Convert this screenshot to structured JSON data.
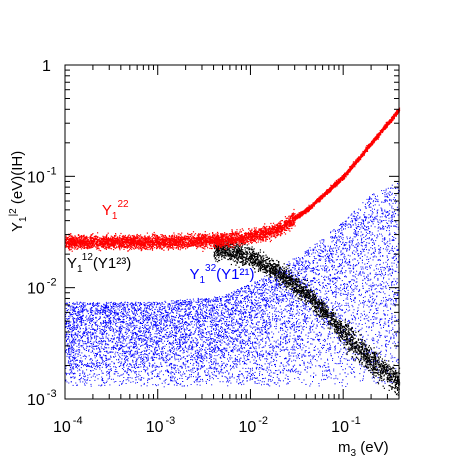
{
  "chart_data": {
    "type": "scatter",
    "x_scale": "log",
    "y_scale": "log",
    "xlim": [
      0.0001,
      0.4
    ],
    "ylim": [
      0.001,
      1
    ],
    "xlabel": {
      "main": "m",
      "sub": "3",
      "tail": " (eV)"
    },
    "ylabel": {
      "main": "Y",
      "sub": "1",
      "sup": "|2",
      "tail": " (eV)(IH)"
    },
    "x_ticks": [
      {
        "value": 0.0001,
        "base": "10",
        "exp": "-4"
      },
      {
        "value": 0.001,
        "base": "10",
        "exp": "-3"
      },
      {
        "value": 0.01,
        "base": "10",
        "exp": "-2"
      },
      {
        "value": 0.1,
        "base": "10",
        "exp": "-1"
      }
    ],
    "y_ticks": [
      {
        "value": 0.001,
        "base": "10",
        "exp": "-3"
      },
      {
        "value": 0.01,
        "base": "10",
        "exp": "-2"
      },
      {
        "value": 0.1,
        "base": "10",
        "exp": "-1"
      },
      {
        "value": 1,
        "base": "1",
        "exp": ""
      }
    ],
    "series": [
      {
        "name": "Y1^22",
        "color": "#ff0000",
        "shape": "band",
        "points": [
          [
            0.0001,
            0.026
          ],
          [
            0.001,
            0.026
          ],
          [
            0.005,
            0.027
          ],
          [
            0.01,
            0.029
          ],
          [
            0.02,
            0.034
          ],
          [
            0.04,
            0.05
          ],
          [
            0.1,
            0.1
          ],
          [
            0.2,
            0.2
          ],
          [
            0.4,
            0.4
          ]
        ],
        "spread_dex": 0.06
      },
      {
        "name": "Y1^12(Y1^23)",
        "color": "#000000",
        "shape": "band",
        "points": [
          [
            0.0001,
            0.024
          ],
          [
            0.001,
            0.024
          ],
          [
            0.005,
            0.022
          ],
          [
            0.01,
            0.019
          ],
          [
            0.02,
            0.014
          ],
          [
            0.04,
            0.009
          ],
          [
            0.1,
            0.004
          ],
          [
            0.2,
            0.0022
          ],
          [
            0.4,
            0.0014
          ]
        ],
        "spread_dex": 0.09
      },
      {
        "name": "Y1^32(Y1^21)",
        "color": "#0000ff",
        "shape": "cloud",
        "upper": [
          [
            0.0001,
            0.0075
          ],
          [
            0.001,
            0.0075
          ],
          [
            0.005,
            0.0085
          ],
          [
            0.01,
            0.011
          ],
          [
            0.02,
            0.015
          ],
          [
            0.05,
            0.025
          ],
          [
            0.1,
            0.04
          ],
          [
            0.2,
            0.07
          ],
          [
            0.4,
            0.09
          ]
        ],
        "lower": [
          [
            0.0001,
            0.0013
          ],
          [
            0.001,
            0.0013
          ],
          [
            0.005,
            0.0013
          ],
          [
            0.01,
            0.0013
          ],
          [
            0.02,
            0.0013
          ],
          [
            0.05,
            0.0013
          ],
          [
            0.1,
            0.0013
          ],
          [
            0.2,
            0.0013
          ],
          [
            0.4,
            0.0013
          ]
        ]
      }
    ],
    "annotations": [
      {
        "id": "red",
        "main": "Y",
        "sub": "1",
        "sup": "22",
        "tail": "",
        "color": "#ff0000",
        "x": 0.00025,
        "y": 0.045
      },
      {
        "id": "black",
        "main": "Y",
        "sub": "1",
        "sup": "12",
        "tail": "(Y1²³)",
        "color": "#000000",
        "x": 0.000105,
        "y": 0.015
      },
      {
        "id": "blue",
        "main": "Y",
        "sub": "1",
        "sup": "32",
        "tail": "(Y1²¹)",
        "color": "#0000ff",
        "x": 0.0022,
        "y": 0.012
      }
    ]
  }
}
